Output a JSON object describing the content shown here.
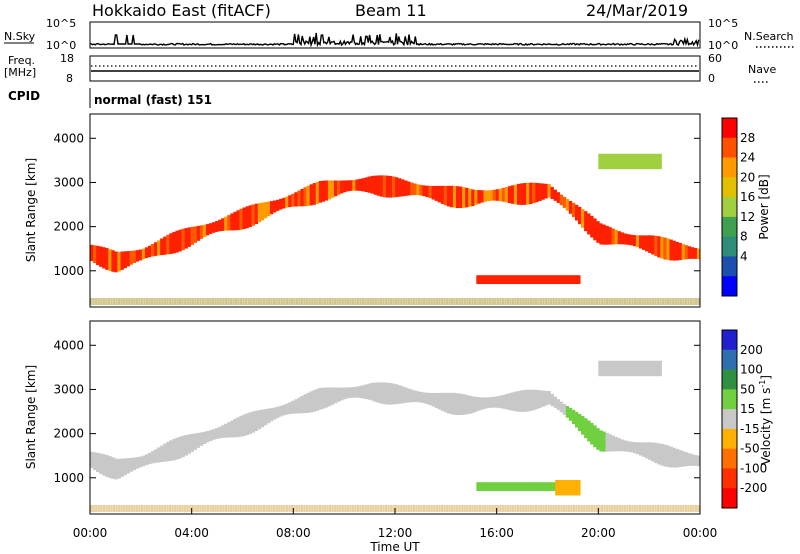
{
  "header": {
    "station": "Hokkaido East (fitACF)",
    "beam": "Beam 11",
    "date": "24/Mar/2019"
  },
  "strips": {
    "nsky_label": "N.Sky",
    "nsearch_label": "N.Search",
    "noise_ticks": [
      "10^5",
      "10^0"
    ],
    "freq_label": "Freq.",
    "freq_unit": "[MHz]",
    "freq_ticks": [
      "18",
      "8"
    ],
    "nave_label": "Nave",
    "nave_ticks": [
      "60",
      "0"
    ],
    "cpid_label": "CPID",
    "cpid_value": "normal (fast) 151"
  },
  "chart_data": [
    {
      "type": "heatmap",
      "name": "power",
      "ylabel": "Slant Range [km]",
      "xlabel": "",
      "x_range_hours": [
        0,
        24
      ],
      "ylim_km": [
        180,
        4550
      ],
      "yticks": [
        "1000",
        "2000",
        "3000",
        "4000"
      ],
      "colorbar_label": "Power [dB]",
      "colorbar_ticks": [
        "28",
        "24",
        "20",
        "16",
        "12",
        "8",
        "4"
      ],
      "colorbar_colors": [
        "#ff0000",
        "#ff5000",
        "#ff9a00",
        "#e0c000",
        "#a0d040",
        "#3fa050",
        "#2e8c78",
        "#1a4fb0",
        "#0000ff"
      ],
      "echo_band_km": [
        [
          0,
          1450
        ],
        [
          1,
          1250
        ],
        [
          2,
          1400
        ],
        [
          3,
          1650
        ],
        [
          4,
          1850
        ],
        [
          5,
          2050
        ],
        [
          6,
          2250
        ],
        [
          7,
          2450
        ],
        [
          8,
          2650
        ],
        [
          9,
          2850
        ],
        [
          10,
          2950
        ],
        [
          11,
          3000
        ],
        [
          12,
          2950
        ],
        [
          13,
          2850
        ],
        [
          14,
          2750
        ],
        [
          15,
          2700
        ],
        [
          16,
          2750
        ],
        [
          17,
          2800
        ],
        [
          18,
          2850
        ],
        [
          19,
          2400
        ],
        [
          20,
          1900
        ],
        [
          21,
          1750
        ],
        [
          22,
          1650
        ],
        [
          23,
          1500
        ],
        [
          24,
          1400
        ]
      ],
      "patches": [
        {
          "t0": 15.2,
          "t1": 19.3,
          "r0": 700,
          "r1": 900
        },
        {
          "t0": 20.0,
          "t1": 22.5,
          "r0": 3300,
          "r1": 3650
        }
      ]
    },
    {
      "type": "heatmap",
      "name": "velocity",
      "ylabel": "Slant Range [km]",
      "xlabel": "Time UT",
      "x_range_hours": [
        0,
        24
      ],
      "ylim_km": [
        180,
        4550
      ],
      "yticks": [
        "1000",
        "2000",
        "3000",
        "4000"
      ],
      "xticks": [
        "00:00",
        "04:00",
        "08:00",
        "12:00",
        "16:00",
        "20:00",
        "00:00"
      ],
      "colorbar_label": "Velocity [m s",
      "colorbar_unit_sup": "-1",
      "colorbar_label_end": "]",
      "colorbar_ticks": [
        "200",
        "100",
        "50",
        "15",
        "-15",
        "-50",
        "-100",
        "-200"
      ],
      "colorbar_colors": [
        "#2020d0",
        "#2f6fb0",
        "#2e9040",
        "#70d040",
        "#c8c8c8",
        "#ffb000",
        "#ff7000",
        "#ff3000",
        "#ff0000"
      ]
    }
  ]
}
